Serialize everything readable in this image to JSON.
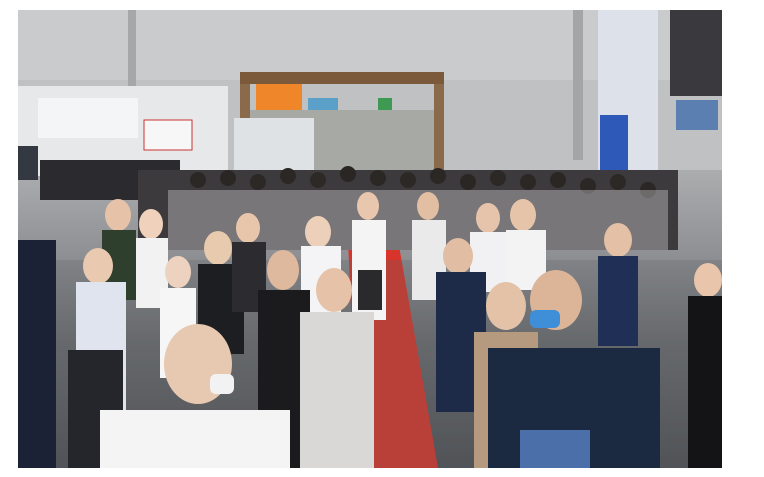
{
  "scene": {
    "description_colors": {
      "ceiling": "#c2c4c6",
      "carpet": "#d9342b",
      "sign_orange": "#f0862a",
      "mask_blue": "#3f8fd8"
    }
  }
}
